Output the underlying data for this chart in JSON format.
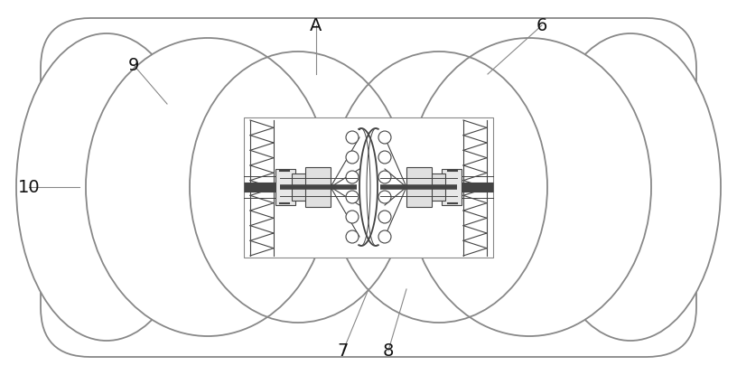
{
  "bg_color": "#ffffff",
  "lc": "#888888",
  "dc": "#444444",
  "fig_width": 8.16,
  "fig_height": 4.15,
  "dpi": 100,
  "label_fontsize": 14
}
